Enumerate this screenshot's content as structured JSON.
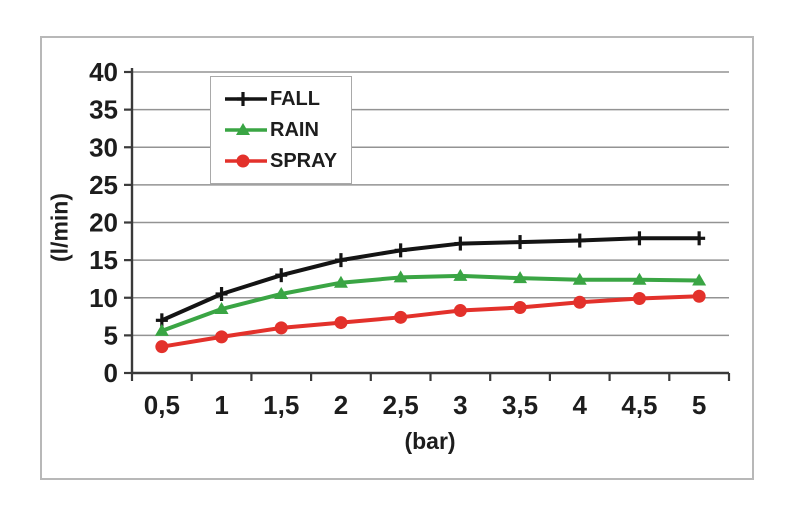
{
  "panel": {
    "background": "#ffffff",
    "border_color": "#b8b8b8"
  },
  "chart_data": {
    "type": "line",
    "title": "",
    "xlabel": "(bar)",
    "ylabel": "(l/min)",
    "x": [
      0.5,
      1,
      1.5,
      2,
      2.5,
      3,
      3.5,
      4,
      4.5,
      5
    ],
    "x_tick_labels": [
      "0,5",
      "1",
      "1,5",
      "2",
      "2,5",
      "3",
      "3,5",
      "4",
      "4,5",
      "5"
    ],
    "y_ticks": [
      0,
      5,
      10,
      15,
      20,
      25,
      30,
      35,
      40
    ],
    "ylim": [
      0,
      40
    ],
    "grid": "horizontal",
    "gridline_color": "#939393",
    "axis_color": "#3a3a3a",
    "legend_position": "top-left-inside",
    "series": [
      {
        "name": "FALL",
        "color": "#141414",
        "marker": "plus",
        "values": [
          7,
          10.5,
          13,
          15,
          16.3,
          17.2,
          17.4,
          17.6,
          17.9,
          17.9
        ]
      },
      {
        "name": "RAIN",
        "color": "#3aa544",
        "marker": "triangle",
        "values": [
          5.6,
          8.5,
          10.5,
          12,
          12.7,
          12.9,
          12.6,
          12.4,
          12.4,
          12.3
        ]
      },
      {
        "name": "SPRAY",
        "color": "#e3312b",
        "marker": "circle",
        "values": [
          3.5,
          4.8,
          6,
          6.7,
          7.4,
          8.3,
          8.7,
          9.4,
          9.9,
          10.2
        ]
      }
    ]
  }
}
